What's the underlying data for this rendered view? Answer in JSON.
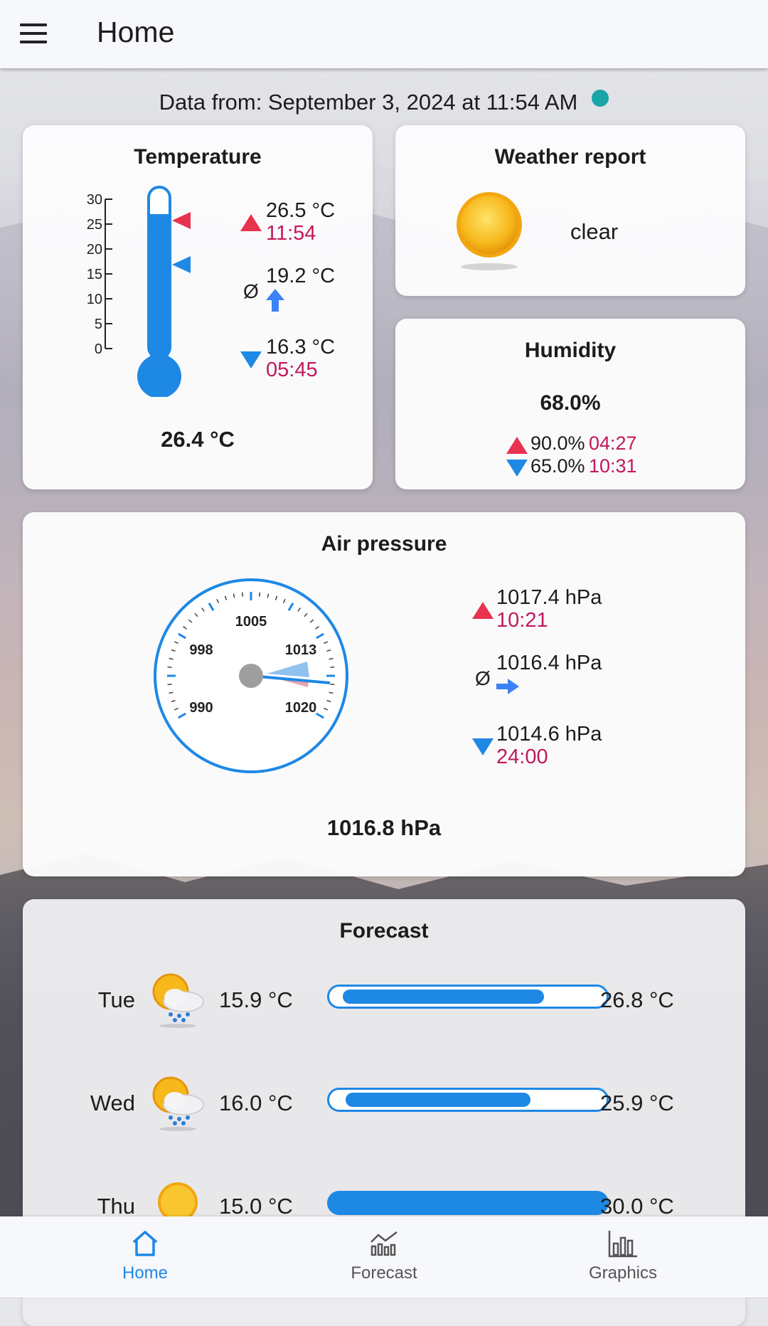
{
  "appbar": {
    "title": "Home"
  },
  "data_from": "Data from: September 3, 2024 at 11:54 AM",
  "temperature": {
    "title": "Temperature",
    "scale_ticks": [
      "30",
      "25",
      "20",
      "15",
      "10",
      "5",
      "0"
    ],
    "max_value": "26.5 °C",
    "max_time": "11:54",
    "avg_symbol": "Ø",
    "avg_value": "19.2 °C",
    "min_value": "16.3 °C",
    "min_time": "05:45",
    "current": "26.4 °C"
  },
  "weather": {
    "title": "Weather report",
    "condition": "clear"
  },
  "humidity": {
    "title": "Humidity",
    "current": "68.0%",
    "max_value": "90.0%",
    "max_time": "04:27",
    "min_value": "65.0%",
    "min_time": "10:31"
  },
  "pressure": {
    "title": "Air pressure",
    "dial_labels": [
      "1005",
      "998",
      "1013",
      "990",
      "1020"
    ],
    "max_value": "1017.4 hPa",
    "max_time": "10:21",
    "avg_symbol": "Ø",
    "avg_value": "1016.4 hPa",
    "min_value": "1014.6 hPa",
    "min_time": "24:00",
    "current": "1016.8 hPa"
  },
  "forecast": {
    "title": "Forecast",
    "days": [
      {
        "day": "Tue",
        "min": "15.9 °C",
        "max": "26.8 °C",
        "icon": "sun-cloud-rain-icon",
        "fill_start": 0.04,
        "fill_end": 0.78
      },
      {
        "day": "Wed",
        "min": "16.0 °C",
        "max": "25.9 °C",
        "icon": "sun-cloud-rain-icon",
        "fill_start": 0.05,
        "fill_end": 0.73
      },
      {
        "day": "Thu",
        "min": "15.0 °C",
        "max": "30.0 °C",
        "icon": "sun-icon",
        "fill_start": 0.0,
        "fill_end": 1.0
      }
    ]
  },
  "nav": {
    "home": "Home",
    "forecast": "Forecast",
    "graphics": "Graphics",
    "active_color": "#1e88e5",
    "inactive_color": "#555555"
  }
}
